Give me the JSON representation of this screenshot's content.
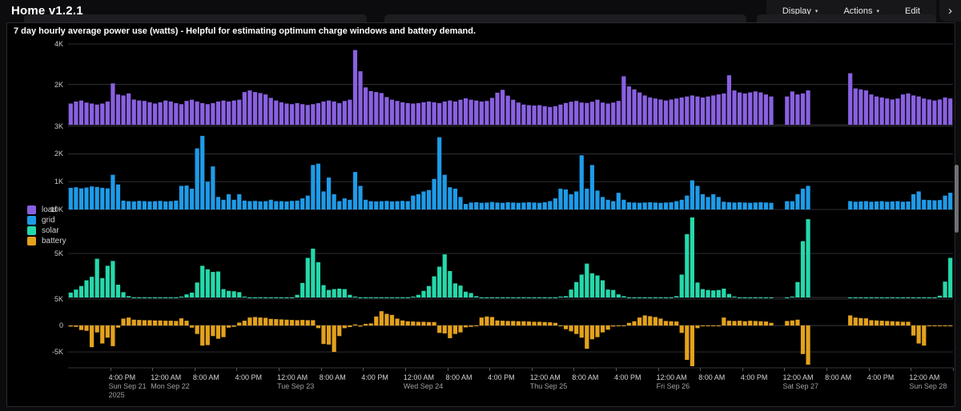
{
  "header": {
    "title": "Home v1.2.1",
    "menus": [
      {
        "label": "Display",
        "has_caret": true
      },
      {
        "label": "Actions",
        "has_caret": true
      },
      {
        "label": "Edit",
        "has_caret": false
      }
    ],
    "caret_icon": "▾",
    "expand_chevron": "›"
  },
  "panel": {
    "title": "7 day hourly average power use (watts) - Helpful for estimating optimum charge windows and battery demand."
  },
  "legend": {
    "position": "left",
    "items": [
      {
        "label": "load",
        "color": "#8961e0"
      },
      {
        "label": "grid",
        "color": "#1e9be8"
      },
      {
        "label": "solar",
        "color": "#25d8ab"
      },
      {
        "label": "battery",
        "color": "#e3a21d"
      }
    ]
  },
  "chart_data": {
    "type": "bar",
    "title": "7 day hourly average power use (watts)",
    "unit": "watts",
    "x_start": "Sun Sep 21 2025 08:00",
    "x_step_hours": 1,
    "n_points": 168,
    "grid": true,
    "legend_position": "left",
    "note": "null values = missing data windows late Fri night and Sat morning",
    "ticks": [
      {
        "h": 8,
        "t": "4:00 PM",
        "d": "Sun Sep 21",
        "yr": "2025"
      },
      {
        "h": 16,
        "t": "12:00 AM",
        "d": "Mon Sep 22"
      },
      {
        "h": 24,
        "t": "8:00 AM"
      },
      {
        "h": 32,
        "t": "4:00 PM"
      },
      {
        "h": 40,
        "t": "12:00 AM",
        "d": "Tue Sep 23"
      },
      {
        "h": 48,
        "t": "8:00 AM"
      },
      {
        "h": 56,
        "t": "4:00 PM"
      },
      {
        "h": 64,
        "t": "12:00 AM",
        "d": "Wed Sep 24"
      },
      {
        "h": 72,
        "t": "8:00 AM"
      },
      {
        "h": 80,
        "t": "4:00 PM"
      },
      {
        "h": 88,
        "t": "12:00 AM",
        "d": "Thu Sep 25"
      },
      {
        "h": 96,
        "t": "8:00 AM"
      },
      {
        "h": 104,
        "t": "4:00 PM"
      },
      {
        "h": 112,
        "t": "12:00 AM",
        "d": "Fri Sep 26"
      },
      {
        "h": 120,
        "t": "8:00 AM"
      },
      {
        "h": 128,
        "t": "4:00 PM"
      },
      {
        "h": 136,
        "t": "12:00 AM",
        "d": "Sat Sep 27"
      },
      {
        "h": 144,
        "t": "8:00 AM"
      },
      {
        "h": 152,
        "t": "4:00 PM"
      },
      {
        "h": 160,
        "t": "12:00 AM",
        "d": "Sun Sep 28"
      }
    ],
    "series": [
      {
        "name": "load",
        "color": "#8961e0",
        "ylim": [
          0,
          4200
        ],
        "gridlines": [
          {
            "value": 4000,
            "label": "4K"
          },
          {
            "value": 2000,
            "label": "2K"
          }
        ],
        "values": [
          1050,
          1150,
          1200,
          1100,
          1050,
          1000,
          1050,
          1150,
          2050,
          1500,
          1450,
          1550,
          1250,
          1200,
          1180,
          1110,
          1050,
          1110,
          1200,
          1150,
          1070,
          1020,
          1180,
          1240,
          1150,
          1070,
          1020,
          1070,
          1150,
          1200,
          1150,
          1200,
          1240,
          1620,
          1700,
          1620,
          1570,
          1500,
          1330,
          1200,
          1110,
          1050,
          1020,
          1070,
          1020,
          980,
          1020,
          1070,
          1150,
          1200,
          1150,
          1070,
          1180,
          1240,
          3700,
          2650,
          1850,
          1670,
          1620,
          1570,
          1370,
          1240,
          1180,
          1110,
          1070,
          1050,
          1070,
          1110,
          1150,
          1110,
          1070,
          1150,
          1200,
          1150,
          1240,
          1310,
          1240,
          1200,
          1150,
          1180,
          1330,
          1590,
          1730,
          1440,
          1240,
          1100,
          1000,
          970,
          950,
          970,
          920,
          880,
          920,
          1000,
          1080,
          1140,
          1180,
          1100,
          1080,
          1140,
          1240,
          1100,
          1050,
          1100,
          1180,
          2400,
          1900,
          1750,
          1600,
          1450,
          1350,
          1300,
          1250,
          1200,
          1250,
          1300,
          1350,
          1400,
          1450,
          1400,
          1350,
          1400,
          1450,
          1500,
          1550,
          2450,
          1700,
          1600,
          1550,
          1600,
          1650,
          1600,
          1500,
          1400,
          null,
          null,
          1400,
          1650,
          1500,
          1550,
          1700,
          null,
          null,
          null,
          null,
          null,
          null,
          null,
          2550,
          1800,
          1750,
          1700,
          1500,
          1400,
          1350,
          1300,
          1250,
          1300,
          1500,
          1550,
          1450,
          1400,
          1300,
          1250,
          1200,
          1250,
          1350,
          1300
        ]
      },
      {
        "name": "grid",
        "color": "#1e9be8",
        "ylim": [
          0,
          3050
        ],
        "gridlines": [
          {
            "value": 3000,
            "label": "3K"
          },
          {
            "value": 2000,
            "label": "2K"
          },
          {
            "value": 1000,
            "label": "1K"
          }
        ],
        "values": [
          780,
          800,
          760,
          790,
          830,
          810,
          780,
          760,
          1250,
          900,
          320,
          300,
          290,
          310,
          300,
          290,
          300,
          310,
          290,
          300,
          320,
          850,
          860,
          750,
          2200,
          2650,
          1000,
          1550,
          450,
          350,
          550,
          350,
          550,
          320,
          300,
          310,
          290,
          300,
          350,
          300,
          300,
          290,
          310,
          320,
          400,
          500,
          1600,
          1650,
          650,
          1150,
          550,
          300,
          400,
          350,
          1350,
          850,
          350,
          300,
          290,
          300,
          310,
          290,
          300,
          310,
          300,
          500,
          550,
          650,
          700,
          1100,
          2600,
          1250,
          800,
          750,
          450,
          200,
          250,
          260,
          240,
          250,
          270,
          250,
          240,
          260,
          250,
          240,
          250,
          260,
          250,
          240,
          260,
          300,
          400,
          750,
          720,
          550,
          650,
          1950,
          750,
          1600,
          680,
          450,
          350,
          300,
          600,
          350,
          260,
          250,
          240,
          250,
          260,
          250,
          240,
          250,
          260,
          300,
          350,
          500,
          1050,
          850,
          550,
          450,
          550,
          450,
          280,
          260,
          250,
          260,
          250,
          240,
          250,
          260,
          250,
          240,
          null,
          null,
          300,
          300,
          550,
          750,
          850,
          null,
          null,
          null,
          null,
          null,
          null,
          null,
          300,
          280,
          290,
          300,
          280,
          290,
          300,
          280,
          290,
          300,
          280,
          290,
          550,
          650,
          350,
          340,
          330,
          340,
          500,
          600
        ]
      },
      {
        "name": "solar",
        "color": "#25d8ab",
        "ylim": [
          0,
          10000
        ],
        "gridlines": [
          {
            "value": 10000,
            "label": "10K"
          },
          {
            "value": 5000,
            "label": "5K"
          }
        ],
        "values": [
          550,
          900,
          1300,
          1950,
          2350,
          4400,
          2200,
          3600,
          4150,
          1450,
          600,
          150,
          0,
          0,
          0,
          0,
          0,
          0,
          0,
          0,
          0,
          100,
          350,
          550,
          1700,
          3600,
          3200,
          2900,
          2950,
          950,
          750,
          700,
          600,
          100,
          0,
          0,
          0,
          0,
          0,
          0,
          0,
          0,
          0,
          300,
          1650,
          4500,
          5550,
          4000,
          1400,
          850,
          950,
          1000,
          950,
          300,
          100,
          0,
          0,
          0,
          0,
          0,
          0,
          0,
          0,
          0,
          0,
          100,
          300,
          750,
          1300,
          2400,
          3500,
          4900,
          3000,
          1600,
          1350,
          650,
          500,
          150,
          0,
          0,
          0,
          0,
          0,
          0,
          0,
          0,
          0,
          0,
          0,
          0,
          0,
          0,
          0,
          100,
          150,
          900,
          1750,
          2600,
          3850,
          2750,
          2500,
          1950,
          900,
          850,
          350,
          150,
          0,
          0,
          0,
          0,
          0,
          0,
          0,
          0,
          0,
          150,
          2600,
          7200,
          9100,
          1700,
          950,
          850,
          800,
          850,
          1000,
          400,
          100,
          0,
          0,
          0,
          0,
          0,
          0,
          0,
          null,
          null,
          0,
          100,
          1750,
          6400,
          8900,
          null,
          null,
          null,
          null,
          null,
          null,
          null,
          0,
          0,
          0,
          0,
          0,
          0,
          0,
          0,
          0,
          0,
          0,
          0,
          0,
          0,
          0,
          0,
          0,
          200,
          1800,
          4500
        ]
      },
      {
        "name": "battery",
        "color": "#e3a21d",
        "ylim": [
          -8000,
          5300
        ],
        "gridlines": [
          {
            "value": 5000,
            "label": "5K"
          },
          {
            "value": 0,
            "label": "0"
          },
          {
            "value": -5000,
            "label": "-5K"
          }
        ],
        "values": [
          -200,
          -250,
          -850,
          -1000,
          -4100,
          -1300,
          -3400,
          -2300,
          -3900,
          -400,
          1300,
          1500,
          1100,
          1050,
          1000,
          1000,
          950,
          950,
          900,
          900,
          850,
          1350,
          900,
          -400,
          -1600,
          -3800,
          -3700,
          -2000,
          -2500,
          -2200,
          -400,
          -250,
          550,
          900,
          1500,
          1600,
          1500,
          1450,
          1250,
          1200,
          1150,
          1100,
          1050,
          1000,
          1050,
          1000,
          1000,
          -500,
          -3500,
          -3600,
          -5000,
          -2000,
          -500,
          -300,
          200,
          -200,
          300,
          400,
          1700,
          2700,
          2200,
          2000,
          1300,
          950,
          800,
          750,
          700,
          700,
          650,
          650,
          -1400,
          -1500,
          -2400,
          -1600,
          -1300,
          -350,
          -250,
          -150,
          1500,
          1700,
          1600,
          950,
          900,
          850,
          850,
          800,
          800,
          750,
          700,
          700,
          650,
          600,
          500,
          -150,
          -700,
          -1100,
          -1600,
          -2300,
          -4400,
          -2600,
          -2200,
          -1300,
          -800,
          -200,
          -150,
          -100,
          500,
          800,
          1500,
          1900,
          1750,
          1600,
          1300,
          850,
          800,
          750,
          -1400,
          -6500,
          -7700,
          -500,
          -150,
          -150,
          -150,
          -150,
          1500,
          900,
          850,
          900,
          800,
          900,
          850,
          800,
          750,
          500,
          null,
          null,
          850,
          950,
          1100,
          -5400,
          -7400,
          null,
          null,
          null,
          null,
          null,
          null,
          null,
          1900,
          1500,
          1400,
          1350,
          1000,
          950,
          900,
          850,
          800,
          750,
          700,
          700,
          -1900,
          -3400,
          -3800,
          -100,
          -100,
          -100,
          -100,
          -100
        ]
      }
    ]
  }
}
